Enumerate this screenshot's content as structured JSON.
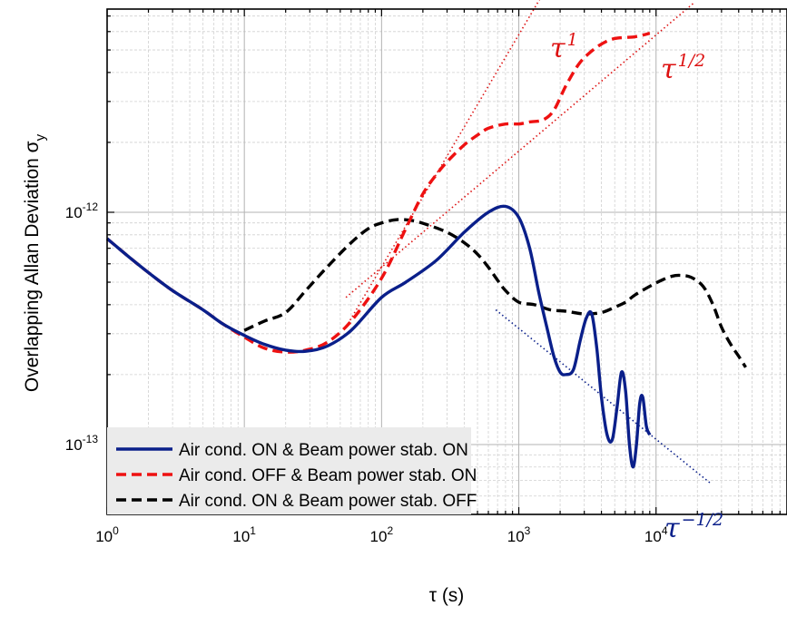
{
  "chart_data": {
    "type": "line",
    "xlabel": "τ (s)",
    "ylabel": "Overlapping Allan Deviation σ",
    "ylabel_sub": "y",
    "x_scale": "log",
    "y_scale": "log",
    "xlim": [
      1,
      90000
    ],
    "ylim": [
      5e-14,
      7.5e-12
    ],
    "grid": true,
    "legend_placement": "bottom-left",
    "x_ticks": [
      {
        "value": 1,
        "base": "10",
        "exp": "0"
      },
      {
        "value": 10,
        "base": "10",
        "exp": "1"
      },
      {
        "value": 100,
        "base": "10",
        "exp": "2"
      },
      {
        "value": 1000,
        "base": "10",
        "exp": "3"
      },
      {
        "value": 10000,
        "base": "10",
        "exp": "4"
      }
    ],
    "y_ticks": [
      {
        "value": 1e-13,
        "base": "10",
        "exp": "-13"
      },
      {
        "value": 1e-12,
        "base": "10",
        "exp": "-12"
      }
    ],
    "series": [
      {
        "name": "Air cond. ON & Beam power stab. ON",
        "color": "#0a1f8a",
        "style": "solid",
        "x": [
          1,
          1.5,
          2,
          3,
          5,
          7,
          10,
          14,
          20,
          28,
          40,
          60,
          100,
          150,
          250,
          400,
          600,
          800,
          1000,
          1200,
          1400,
          1600,
          1800,
          2000,
          2200,
          2500,
          2800,
          3100,
          3400,
          3700,
          4000,
          4400,
          4800,
          5200,
          5600,
          6000,
          6400,
          6800,
          7200,
          7600,
          8000,
          8500,
          9000
        ],
        "y": [
          7.7e-13,
          6.3e-13,
          5.5e-13,
          4.6e-13,
          3.8e-13,
          3.3e-13,
          2.95e-13,
          2.7e-13,
          2.55e-13,
          2.52e-13,
          2.65e-13,
          3.1e-13,
          4.3e-13,
          5e-13,
          6.2e-13,
          8.2e-13,
          1e-12,
          1.06e-12,
          9.5e-13,
          7e-13,
          4.5e-13,
          3.2e-13,
          2.4e-13,
          2.05e-13,
          2e-13,
          2.1e-13,
          2.8e-13,
          3.5e-13,
          3.65e-13,
          2.6e-13,
          1.6e-13,
          1.1e-13,
          1.05e-13,
          1.45e-13,
          2.05e-13,
          1.7e-13,
          1e-13,
          8e-14,
          1e-13,
          1.5e-13,
          1.6e-13,
          1.2e-13,
          1.1e-13
        ]
      },
      {
        "name": "Air cond. OFF & Beam power stab. ON",
        "color": "#ee1111",
        "style": "dash",
        "x": [
          1,
          1.5,
          2,
          3,
          5,
          7,
          10,
          14,
          20,
          28,
          40,
          60,
          100,
          150,
          200,
          250,
          300,
          400,
          500,
          600,
          800,
          1000,
          1200,
          1500,
          1800,
          2200,
          2700,
          3200,
          4000,
          5000,
          7000,
          9000
        ],
        "y": [
          7.7e-13,
          6.3e-13,
          5.5e-13,
          4.6e-13,
          3.8e-13,
          3.3e-13,
          2.9e-13,
          2.6e-13,
          2.5e-13,
          2.55e-13,
          2.75e-13,
          3.4e-13,
          5.2e-13,
          8.5e-13,
          1.2e-12,
          1.45e-12,
          1.65e-12,
          1.95e-12,
          2.15e-12,
          2.3e-12,
          2.4e-12,
          2.4e-12,
          2.45e-12,
          2.5e-12,
          2.75e-12,
          3.5e-12,
          4.3e-12,
          4.8e-12,
          5.3e-12,
          5.6e-12,
          5.7e-12,
          5.9e-12
        ]
      },
      {
        "name": "Air cond. ON & Beam power stab. OFF",
        "color": "#000000",
        "style": "dash",
        "x": [
          10,
          14,
          20,
          28,
          40,
          60,
          80,
          100,
          130,
          170,
          220,
          300,
          400,
          500,
          600,
          700,
          800,
          1000,
          1300,
          1700,
          2200,
          3000,
          4000,
          5000,
          6000,
          7000,
          9000,
          11000,
          13000,
          15000,
          18000,
          22000,
          26000,
          30000,
          35000,
          40000,
          45000
        ],
        "y": [
          3.1e-13,
          3.4e-13,
          3.7e-13,
          4.6e-13,
          5.8e-13,
          7.4e-13,
          8.5e-13,
          9e-13,
          9.3e-13,
          9.2e-13,
          8.8e-13,
          8.2e-13,
          7.4e-13,
          6.6e-13,
          5.8e-13,
          5.1e-13,
          4.6e-13,
          4.1e-13,
          4e-13,
          3.8e-13,
          3.75e-13,
          3.65e-13,
          3.7e-13,
          3.9e-13,
          4.1e-13,
          4.4e-13,
          4.8e-13,
          5.1e-13,
          5.3e-13,
          5.35e-13,
          5.25e-13,
          4.8e-13,
          4e-13,
          3.2e-13,
          2.7e-13,
          2.4e-13,
          2.15e-13
        ]
      }
    ],
    "slope_guides": [
      {
        "label": "τ",
        "exp": "1",
        "color": "#dd1111",
        "x": [
          55,
          1700
        ],
        "y": [
          3.2e-13,
          9.9e-12
        ]
      },
      {
        "label": "τ",
        "exp": "1/2",
        "color": "#dd1111",
        "x": [
          55,
          19000
        ],
        "y": [
          4.3e-13,
          8e-12
        ]
      },
      {
        "label": "τ",
        "exp": "−1/2",
        "color": "#0a1f8a",
        "x": [
          680,
          25000
        ],
        "y": [
          3.8e-13,
          6.8e-14
        ]
      }
    ]
  }
}
